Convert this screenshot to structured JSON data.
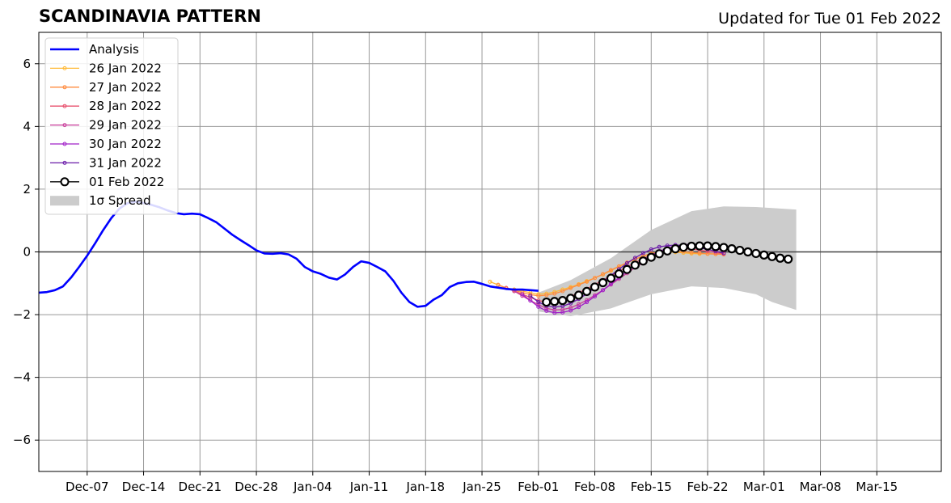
{
  "chart_data": {
    "type": "line",
    "title": "SCANDINAVIA PATTERN",
    "subtitle": "Updated for Tue 01 Feb 2022",
    "xlabel": "",
    "ylabel": "",
    "ylim": [
      -7,
      7
    ],
    "yticks": [
      -6,
      -4,
      -2,
      0,
      2,
      4,
      6
    ],
    "ytick_labels": [
      "−6",
      "−4",
      "−2",
      "0",
      "2",
      "4",
      "6"
    ],
    "xlim": [
      "2021-12-01",
      "2022-03-23"
    ],
    "xticks": [
      "2021-12-07",
      "2021-12-14",
      "2021-12-21",
      "2021-12-28",
      "2022-01-04",
      "2022-01-11",
      "2022-01-18",
      "2022-01-25",
      "2022-02-01",
      "2022-02-08",
      "2022-02-15",
      "2022-02-22",
      "2022-03-01",
      "2022-03-08",
      "2022-03-15"
    ],
    "xtick_labels": [
      "Dec-07",
      "Dec-14",
      "Dec-21",
      "Dec-28",
      "Jan-04",
      "Jan-11",
      "Jan-18",
      "Jan-25",
      "Feb-01",
      "Feb-08",
      "Feb-15",
      "Feb-22",
      "Mar-01",
      "Mar-08",
      "Mar-15"
    ],
    "grid": true,
    "legend_position": "top-left",
    "analysis": {
      "name": "Analysis",
      "color": "#0000ff",
      "start": "2021-12-01",
      "values": [
        -1.3,
        -1.28,
        -1.22,
        -1.1,
        -0.82,
        -0.48,
        -0.12,
        0.28,
        0.7,
        1.08,
        1.38,
        1.55,
        1.6,
        1.56,
        1.5,
        1.42,
        1.32,
        1.24,
        1.2,
        1.22,
        1.2,
        1.08,
        0.95,
        0.75,
        0.55,
        0.38,
        0.22,
        0.05,
        -0.05,
        -0.06,
        -0.04,
        -0.08,
        -0.22,
        -0.48,
        -0.62,
        -0.7,
        -0.82,
        -0.88,
        -0.72,
        -0.48,
        -0.3,
        -0.35,
        -0.48,
        -0.62,
        -0.92,
        -1.3,
        -1.6,
        -1.75,
        -1.72,
        -1.52,
        -1.38,
        -1.12,
        -1.0,
        -0.96,
        -0.95,
        -1.02,
        -1.1,
        -1.14,
        -1.18,
        -1.2,
        -1.2,
        -1.22,
        -1.24
      ]
    },
    "spread": {
      "name": "1σ Spread",
      "color": "#cccccc",
      "dates": [
        "2022-02-01",
        "2022-02-05",
        "2022-02-10",
        "2022-02-15",
        "2022-02-20",
        "2022-02-24",
        "2022-02-28",
        "2022-03-02",
        "2022-03-05"
      ],
      "upper": [
        -1.3,
        -0.9,
        -0.2,
        0.7,
        1.3,
        1.45,
        1.43,
        1.4,
        1.35
      ],
      "lower": [
        -1.9,
        -2.05,
        -1.8,
        -1.35,
        -1.1,
        -1.15,
        -1.35,
        -1.6,
        -1.85
      ]
    },
    "series": [
      {
        "name": "26 Jan 2022",
        "color": "#ffb833",
        "start": "2022-01-26",
        "values": [
          -0.95,
          -1.05,
          -1.15,
          -1.2,
          -1.25,
          -1.3,
          -1.35,
          -1.33,
          -1.28,
          -1.2,
          -1.12,
          -1.03,
          -0.93,
          -0.83,
          -0.72,
          -0.6,
          -0.47,
          -0.35,
          -0.24,
          -0.14,
          -0.07,
          -0.02,
          0.0,
          -0.01,
          -0.03,
          -0.05,
          -0.06,
          -0.06,
          -0.06,
          -0.07
        ]
      },
      {
        "name": "27 Jan 2022",
        "color": "#ff8c40",
        "start": "2022-01-27",
        "values": [
          -1.05,
          -1.15,
          -1.22,
          -1.3,
          -1.36,
          -1.4,
          -1.38,
          -1.33,
          -1.25,
          -1.15,
          -1.05,
          -0.95,
          -0.83,
          -0.71,
          -0.58,
          -0.46,
          -0.34,
          -0.23,
          -0.13,
          -0.05,
          0.0,
          0.02,
          0.02,
          0.01,
          -0.02,
          -0.04,
          -0.06,
          -0.07,
          -0.08
        ]
      },
      {
        "name": "28 Jan 2022",
        "color": "#e8506e",
        "start": "2022-01-28",
        "values": [
          -1.15,
          -1.25,
          -1.35,
          -1.45,
          -1.55,
          -1.6,
          -1.58,
          -1.52,
          -1.42,
          -1.3,
          -1.18,
          -1.04,
          -0.9,
          -0.76,
          -0.62,
          -0.48,
          -0.34,
          -0.22,
          -0.1,
          -0.01,
          0.05,
          0.09,
          0.1,
          0.09,
          0.06,
          0.02,
          -0.02,
          -0.06
        ]
      },
      {
        "name": "29 Jan 2022",
        "color": "#c83c9a",
        "start": "2022-01-29",
        "values": [
          -1.25,
          -1.4,
          -1.55,
          -1.68,
          -1.8,
          -1.85,
          -1.84,
          -1.78,
          -1.67,
          -1.54,
          -1.38,
          -1.22,
          -1.04,
          -0.86,
          -0.68,
          -0.5,
          -0.34,
          -0.2,
          -0.07,
          0.04,
          0.12,
          0.17,
          0.19,
          0.18,
          0.15,
          0.1,
          0.04
        ]
      },
      {
        "name": "30 Jan 2022",
        "color": "#a020c8",
        "start": "2022-01-30",
        "values": [
          -1.35,
          -1.55,
          -1.75,
          -1.88,
          -1.94,
          -1.93,
          -1.87,
          -1.76,
          -1.6,
          -1.42,
          -1.22,
          -1.02,
          -0.82,
          -0.62,
          -0.43,
          -0.26,
          -0.11,
          0.02,
          0.12,
          0.19,
          0.23,
          0.24,
          0.22,
          0.18,
          0.13,
          0.07
        ]
      },
      {
        "name": "31 Jan 2022",
        "color": "#6a1aa8",
        "start": "2022-01-31",
        "values": [
          -1.4,
          -1.6,
          -1.72,
          -1.76,
          -1.73,
          -1.64,
          -1.5,
          -1.34,
          -1.15,
          -0.95,
          -0.75,
          -0.55,
          -0.36,
          -0.19,
          -0.04,
          0.08,
          0.16,
          0.2,
          0.22,
          0.21,
          0.18,
          0.13,
          0.08,
          0.02,
          -0.04
        ]
      },
      {
        "name": "01 Feb 2022",
        "color": "#000000",
        "start": "2022-02-02",
        "marker": "circle-white",
        "values": [
          -1.6,
          -1.58,
          -1.55,
          -1.48,
          -1.38,
          -1.26,
          -1.12,
          -0.98,
          -0.84,
          -0.7,
          -0.56,
          -0.42,
          -0.29,
          -0.17,
          -0.06,
          0.03,
          0.1,
          0.15,
          0.18,
          0.19,
          0.19,
          0.17,
          0.14,
          0.1,
          0.05,
          0.0,
          -0.05,
          -0.1,
          -0.15,
          -0.2,
          -0.23
        ]
      }
    ]
  }
}
